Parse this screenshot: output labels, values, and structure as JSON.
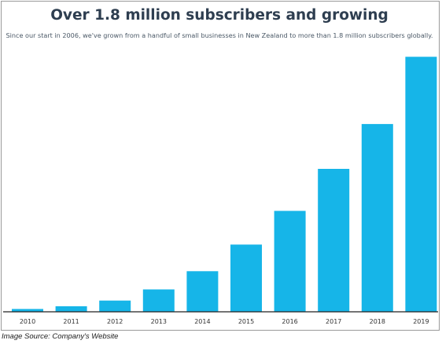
{
  "title": "Over 1.8 million subscribers and growing",
  "subtitle": "Since our start in 2006, we've grown from a handful of small businesses in New Zealand to more than 1.8 million subscribers globally.",
  "caption": "Image Source: Company's Website",
  "colors": {
    "bar": "#16b5e8",
    "axis": "#222222",
    "title": "#2e3e50"
  },
  "chart_data": {
    "type": "bar",
    "title": "Over 1.8 million subscribers and growing",
    "subtitle": "Since our start in 2006, we've grown from a handful of small businesses in New Zealand to more than 1.8 million subscribers globally.",
    "categories": [
      "2010",
      "2011",
      "2012",
      "2013",
      "2014",
      "2015",
      "2016",
      "2017",
      "2018",
      "2019"
    ],
    "values": [
      0.02,
      0.04,
      0.08,
      0.16,
      0.29,
      0.48,
      0.72,
      1.02,
      1.34,
      1.82
    ],
    "unit": "million subscribers",
    "ylim": [
      0,
      1.9
    ],
    "grid": false,
    "legend": "none"
  }
}
